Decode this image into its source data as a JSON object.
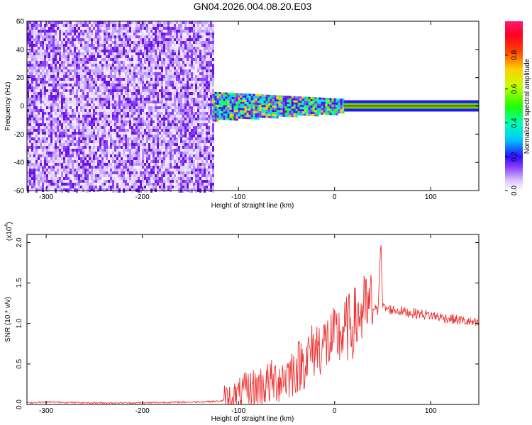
{
  "title": "GN04.2026.004.08.20.E03",
  "chart_data": [
    {
      "type": "heatmap",
      "xlabel": "Height of straight line (km)",
      "ylabel": "Frequency (Hz)",
      "xlim": [
        -320,
        150
      ],
      "ylim": [
        -60,
        60
      ],
      "xticks": [
        -300,
        -200,
        -100,
        0,
        100
      ],
      "yticks": [
        -60,
        -40,
        -20,
        0,
        20,
        40,
        60
      ],
      "colorbar": {
        "label": "Normalized spectral amplitude",
        "range": [
          0,
          1
        ],
        "ticks": [
          "0.0",
          "0.2",
          "0.4",
          "0.6",
          "0.8"
        ],
        "tick_values": [
          0,
          0.2,
          0.4,
          0.6,
          0.8
        ]
      },
      "regions": [
        {
          "desc": "broadband noise",
          "x": [
            -320,
            -127
          ],
          "f": [
            -60,
            60
          ],
          "amplitude": 0.12
        },
        {
          "desc": "noisy band",
          "x": [
            -127,
            10
          ],
          "f": [
            -10,
            10
          ],
          "amplitude": 0.4
        },
        {
          "desc": "narrow line",
          "x": [
            10,
            150
          ],
          "f": [
            -4,
            4
          ],
          "amplitude": 0.9
        }
      ],
      "colors": {
        "low": "#c8a8ff",
        "mid": "#6a14e0",
        "high": "#ff2200"
      }
    },
    {
      "type": "line",
      "xlabel": "Height of straight line (km)",
      "ylabel": "SNR (10 * v/v)",
      "yscale_label": "(x10",
      "yscale_exp": "4",
      "xlim": [
        -320,
        150
      ],
      "ylim": [
        0,
        2.1
      ],
      "xticks": [
        -300,
        -200,
        -100,
        0,
        100
      ],
      "yticks": [
        0.0,
        0.5,
        1.0,
        1.5,
        2.0
      ],
      "ytick_labels": [
        "0.0",
        "0.5",
        "1.0",
        "1.5",
        "2.0"
      ],
      "color": "#ee3333",
      "series": [
        {
          "x": [
            -320,
            -300,
            -250,
            -200,
            -150,
            -120,
            -110,
            -100,
            -90,
            -80,
            -70,
            -60,
            -50,
            -40,
            -30,
            -20,
            -10,
            0,
            10,
            20,
            25,
            30,
            35,
            40,
            45,
            48,
            50,
            55,
            60,
            70,
            80,
            90,
            100,
            110,
            120,
            130,
            140,
            150
          ],
          "values": [
            0.02,
            0.03,
            0.02,
            0.02,
            0.03,
            0.04,
            0.06,
            0.1,
            0.18,
            0.22,
            0.25,
            0.3,
            0.35,
            0.45,
            0.55,
            0.7,
            0.75,
            0.8,
            0.9,
            1.0,
            1.1,
            1.15,
            1.18,
            1.2,
            1.15,
            2.05,
            1.2,
            1.18,
            1.17,
            1.15,
            1.13,
            1.12,
            1.1,
            1.08,
            1.06,
            1.04,
            1.02,
            0.99
          ]
        }
      ]
    }
  ]
}
